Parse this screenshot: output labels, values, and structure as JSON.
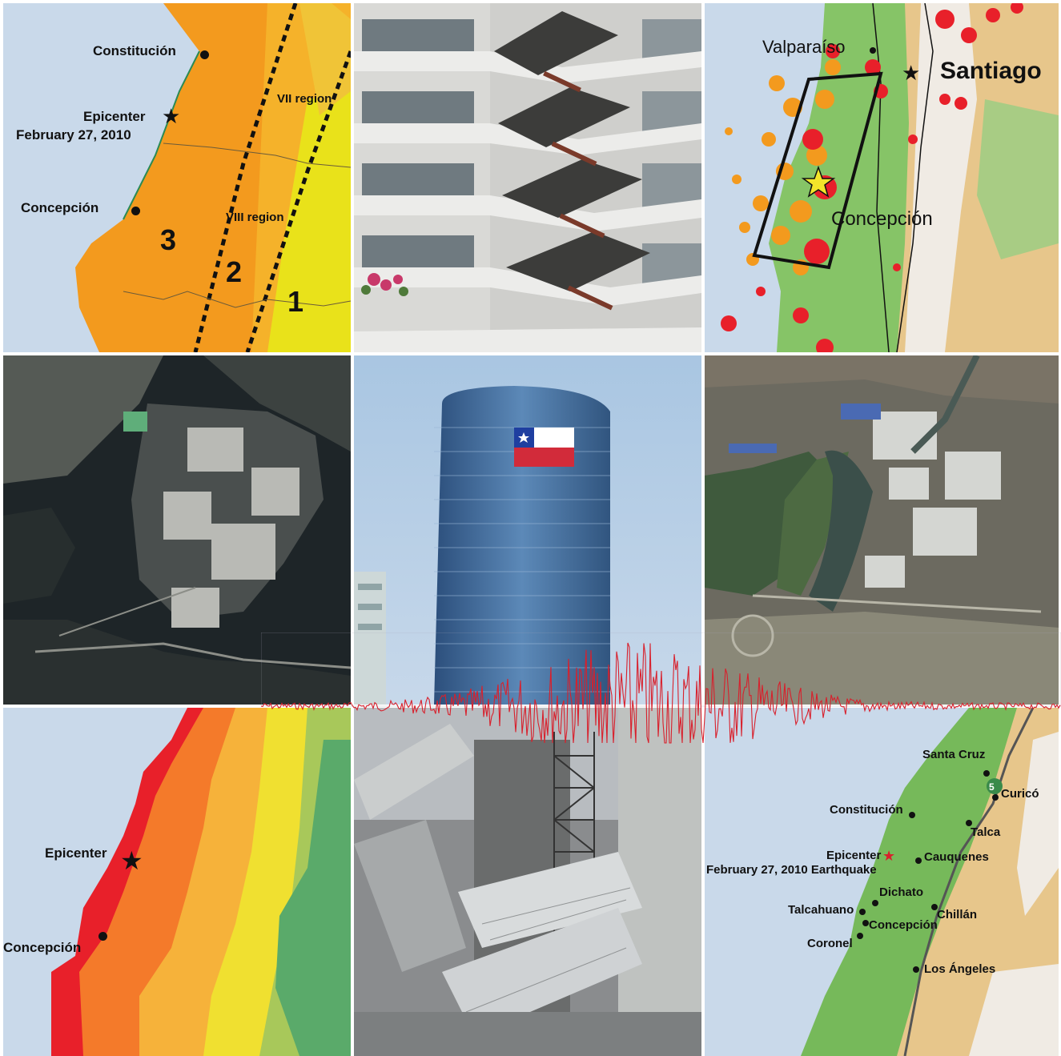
{
  "tiles": {
    "fault_zones_map": {
      "labels": {
        "constitucion": "Constitución",
        "epicenter": "Epicenter",
        "date": "February 27, 2010",
        "concepcion": "Concepción",
        "vii_region": "VII region",
        "viii_region": "VIII region",
        "zone3": "3",
        "zone2": "2",
        "zone1": "1"
      }
    },
    "aftershock_map": {
      "labels": {
        "valparaiso": "Valparaíso",
        "santiago": "Santiago",
        "concepcion": "Concepción"
      }
    },
    "intensity_map": {
      "labels": {
        "epicenter": "Epicenter",
        "concepcion": "Concepción"
      }
    },
    "towns_map": {
      "labels": {
        "santa_cruz": "Santa Cruz",
        "curico": "Curicó",
        "constitucion": "Constitución",
        "talca": "Talca",
        "epicenter": "Epicenter",
        "date_quake": "February 27, 2010 Earthquake",
        "cauquenes": "Cauquenes",
        "dichato": "Dichato",
        "talcahuano": "Talcahuano",
        "chillan": "Chillán",
        "concepcion": "Concepción",
        "coronel": "Coronel",
        "los_angeles": "Los Ángeles",
        "route": "5"
      }
    }
  },
  "colors": {
    "ocean": "#c9d9ea",
    "zone_orange": "#f39a1e",
    "zone_yellow": "#e9e21a",
    "aftershock_red": "#e8202a",
    "seismogram_red": "#d8202c"
  }
}
